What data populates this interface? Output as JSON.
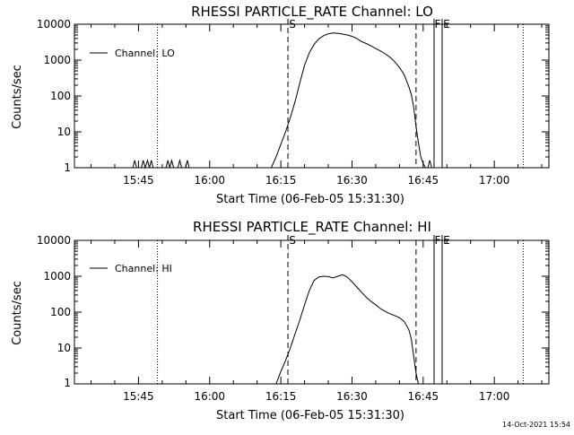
{
  "footer": {
    "timestamp": "14-Oct-2021 15:54"
  },
  "colors": {
    "background": "#ffffff",
    "foreground": "#000000"
  },
  "chart_data": [
    {
      "type": "line",
      "title": "RHESSI PARTICLE_RATE Channel: LO",
      "xlabel": "Start Time (06-Feb-05 15:31:30)",
      "ylabel": "Counts/sec",
      "y_scale": "log",
      "ylim": [
        1,
        10000
      ],
      "y_ticks": [
        1,
        10,
        100,
        1000,
        10000
      ],
      "y_tick_labels": [
        "1",
        "10",
        "100",
        "1000",
        "10000"
      ],
      "x_units": "minutes after 15:31:30",
      "xlim": [
        0,
        100
      ],
      "x_ticks": [
        13.5,
        28.5,
        43.5,
        58.5,
        73.5,
        88.5
      ],
      "x_tick_labels": [
        "15:45",
        "16:00",
        "16:15",
        "16:30",
        "16:45",
        "17:00"
      ],
      "legend": {
        "label": "Channel: LO",
        "position": "top-left"
      },
      "markers": [
        {
          "label": "S",
          "x": 45.0,
          "style": "dashed"
        },
        {
          "label": "F",
          "x": 75.8,
          "style": "solid"
        },
        {
          "label": "E",
          "x": 77.5,
          "style": "solid"
        }
      ],
      "dotted_lines_x": [
        17.5,
        94.6
      ],
      "dashed_lines_x": [
        72.0
      ],
      "series": [
        {
          "name": "Channel: LO",
          "points": [
            [
              12.3,
              1
            ],
            [
              12.7,
              1.6
            ],
            [
              13.1,
              1
            ],
            [
              14.1,
              1
            ],
            [
              14.5,
              1.6
            ],
            [
              14.9,
              1
            ],
            [
              15.4,
              1.6
            ],
            [
              15.8,
              1
            ],
            [
              16.2,
              1.6
            ],
            [
              16.6,
              1
            ],
            [
              19.3,
              1
            ],
            [
              19.7,
              1.6
            ],
            [
              20.1,
              1
            ],
            [
              20.5,
              1.6
            ],
            [
              20.9,
              1
            ],
            [
              21.8,
              1
            ],
            [
              22.2,
              1.6
            ],
            [
              22.6,
              1
            ],
            [
              23.4,
              1
            ],
            [
              23.8,
              1.6
            ],
            [
              24.2,
              1
            ],
            [
              41.5,
              1
            ],
            [
              42.5,
              2
            ],
            [
              43.5,
              4.5
            ],
            [
              44.5,
              10
            ],
            [
              45.5,
              25
            ],
            [
              46.5,
              70
            ],
            [
              47.5,
              230
            ],
            [
              48.5,
              720
            ],
            [
              49.5,
              1600
            ],
            [
              50.5,
              2700
            ],
            [
              51.5,
              3900
            ],
            [
              52.5,
              4800
            ],
            [
              53.5,
              5400
            ],
            [
              54.5,
              5700
            ],
            [
              55.5,
              5600
            ],
            [
              56.5,
              5300
            ],
            [
              57.5,
              5000
            ],
            [
              58.5,
              4600
            ],
            [
              59.5,
              4000
            ],
            [
              60.5,
              3300
            ],
            [
              61.5,
              2900
            ],
            [
              62.5,
              2500
            ],
            [
              63.5,
              2100
            ],
            [
              64.5,
              1800
            ],
            [
              65.5,
              1500
            ],
            [
              66.5,
              1200
            ],
            [
              67.5,
              900
            ],
            [
              68.5,
              620
            ],
            [
              69.5,
              390
            ],
            [
              70.5,
              180
            ],
            [
              71.0,
              110
            ],
            [
              71.5,
              50
            ],
            [
              72.0,
              14
            ],
            [
              72.5,
              5
            ],
            [
              73.0,
              2
            ],
            [
              73.5,
              1.3
            ],
            [
              74.0,
              1
            ],
            [
              74.5,
              1
            ],
            [
              74.9,
              1.6
            ],
            [
              75.3,
              1
            ]
          ]
        }
      ]
    },
    {
      "type": "line",
      "title": "RHESSI PARTICLE_RATE Channel: HI",
      "xlabel": "Start Time (06-Feb-05 15:31:30)",
      "ylabel": "Counts/sec",
      "y_scale": "log",
      "ylim": [
        1,
        10000
      ],
      "y_ticks": [
        1,
        10,
        100,
        1000,
        10000
      ],
      "y_tick_labels": [
        "1",
        "10",
        "100",
        "1000",
        "10000"
      ],
      "x_units": "minutes after 15:31:30",
      "xlim": [
        0,
        100
      ],
      "x_ticks": [
        13.5,
        28.5,
        43.5,
        58.5,
        73.5,
        88.5
      ],
      "x_tick_labels": [
        "15:45",
        "16:00",
        "16:15",
        "16:30",
        "16:45",
        "17:00"
      ],
      "legend": {
        "label": "Channel: HI",
        "position": "top-left"
      },
      "markers": [
        {
          "label": "S",
          "x": 45.0,
          "style": "dashed"
        },
        {
          "label": "F",
          "x": 75.8,
          "style": "solid"
        },
        {
          "label": "E",
          "x": 77.5,
          "style": "solid"
        }
      ],
      "dotted_lines_x": [
        17.5,
        94.6
      ],
      "dashed_lines_x": [
        72.0
      ],
      "series": [
        {
          "name": "Channel: HI",
          "points": [
            [
              42.5,
              1
            ],
            [
              43.5,
              2.2
            ],
            [
              44.5,
              4.5
            ],
            [
              45.5,
              10
            ],
            [
              46.5,
              25
            ],
            [
              47.5,
              60
            ],
            [
              48.5,
              160
            ],
            [
              49.5,
              400
            ],
            [
              50.5,
              760
            ],
            [
              51.5,
              950
            ],
            [
              52.5,
              1000
            ],
            [
              53.5,
              980
            ],
            [
              54.5,
              900
            ],
            [
              55.5,
              1000
            ],
            [
              56.5,
              1100
            ],
            [
              57.5,
              950
            ],
            [
              58.5,
              700
            ],
            [
              59.5,
              500
            ],
            [
              60.5,
              360
            ],
            [
              61.5,
              260
            ],
            [
              62.5,
              200
            ],
            [
              63.5,
              160
            ],
            [
              64.5,
              125
            ],
            [
              65.5,
              105
            ],
            [
              66.5,
              90
            ],
            [
              67.5,
              80
            ],
            [
              68.5,
              70
            ],
            [
              69.5,
              55
            ],
            [
              70.5,
              32
            ],
            [
              71.0,
              18
            ],
            [
              71.5,
              6
            ],
            [
              72.0,
              2
            ],
            [
              72.5,
              1
            ]
          ]
        }
      ]
    }
  ]
}
